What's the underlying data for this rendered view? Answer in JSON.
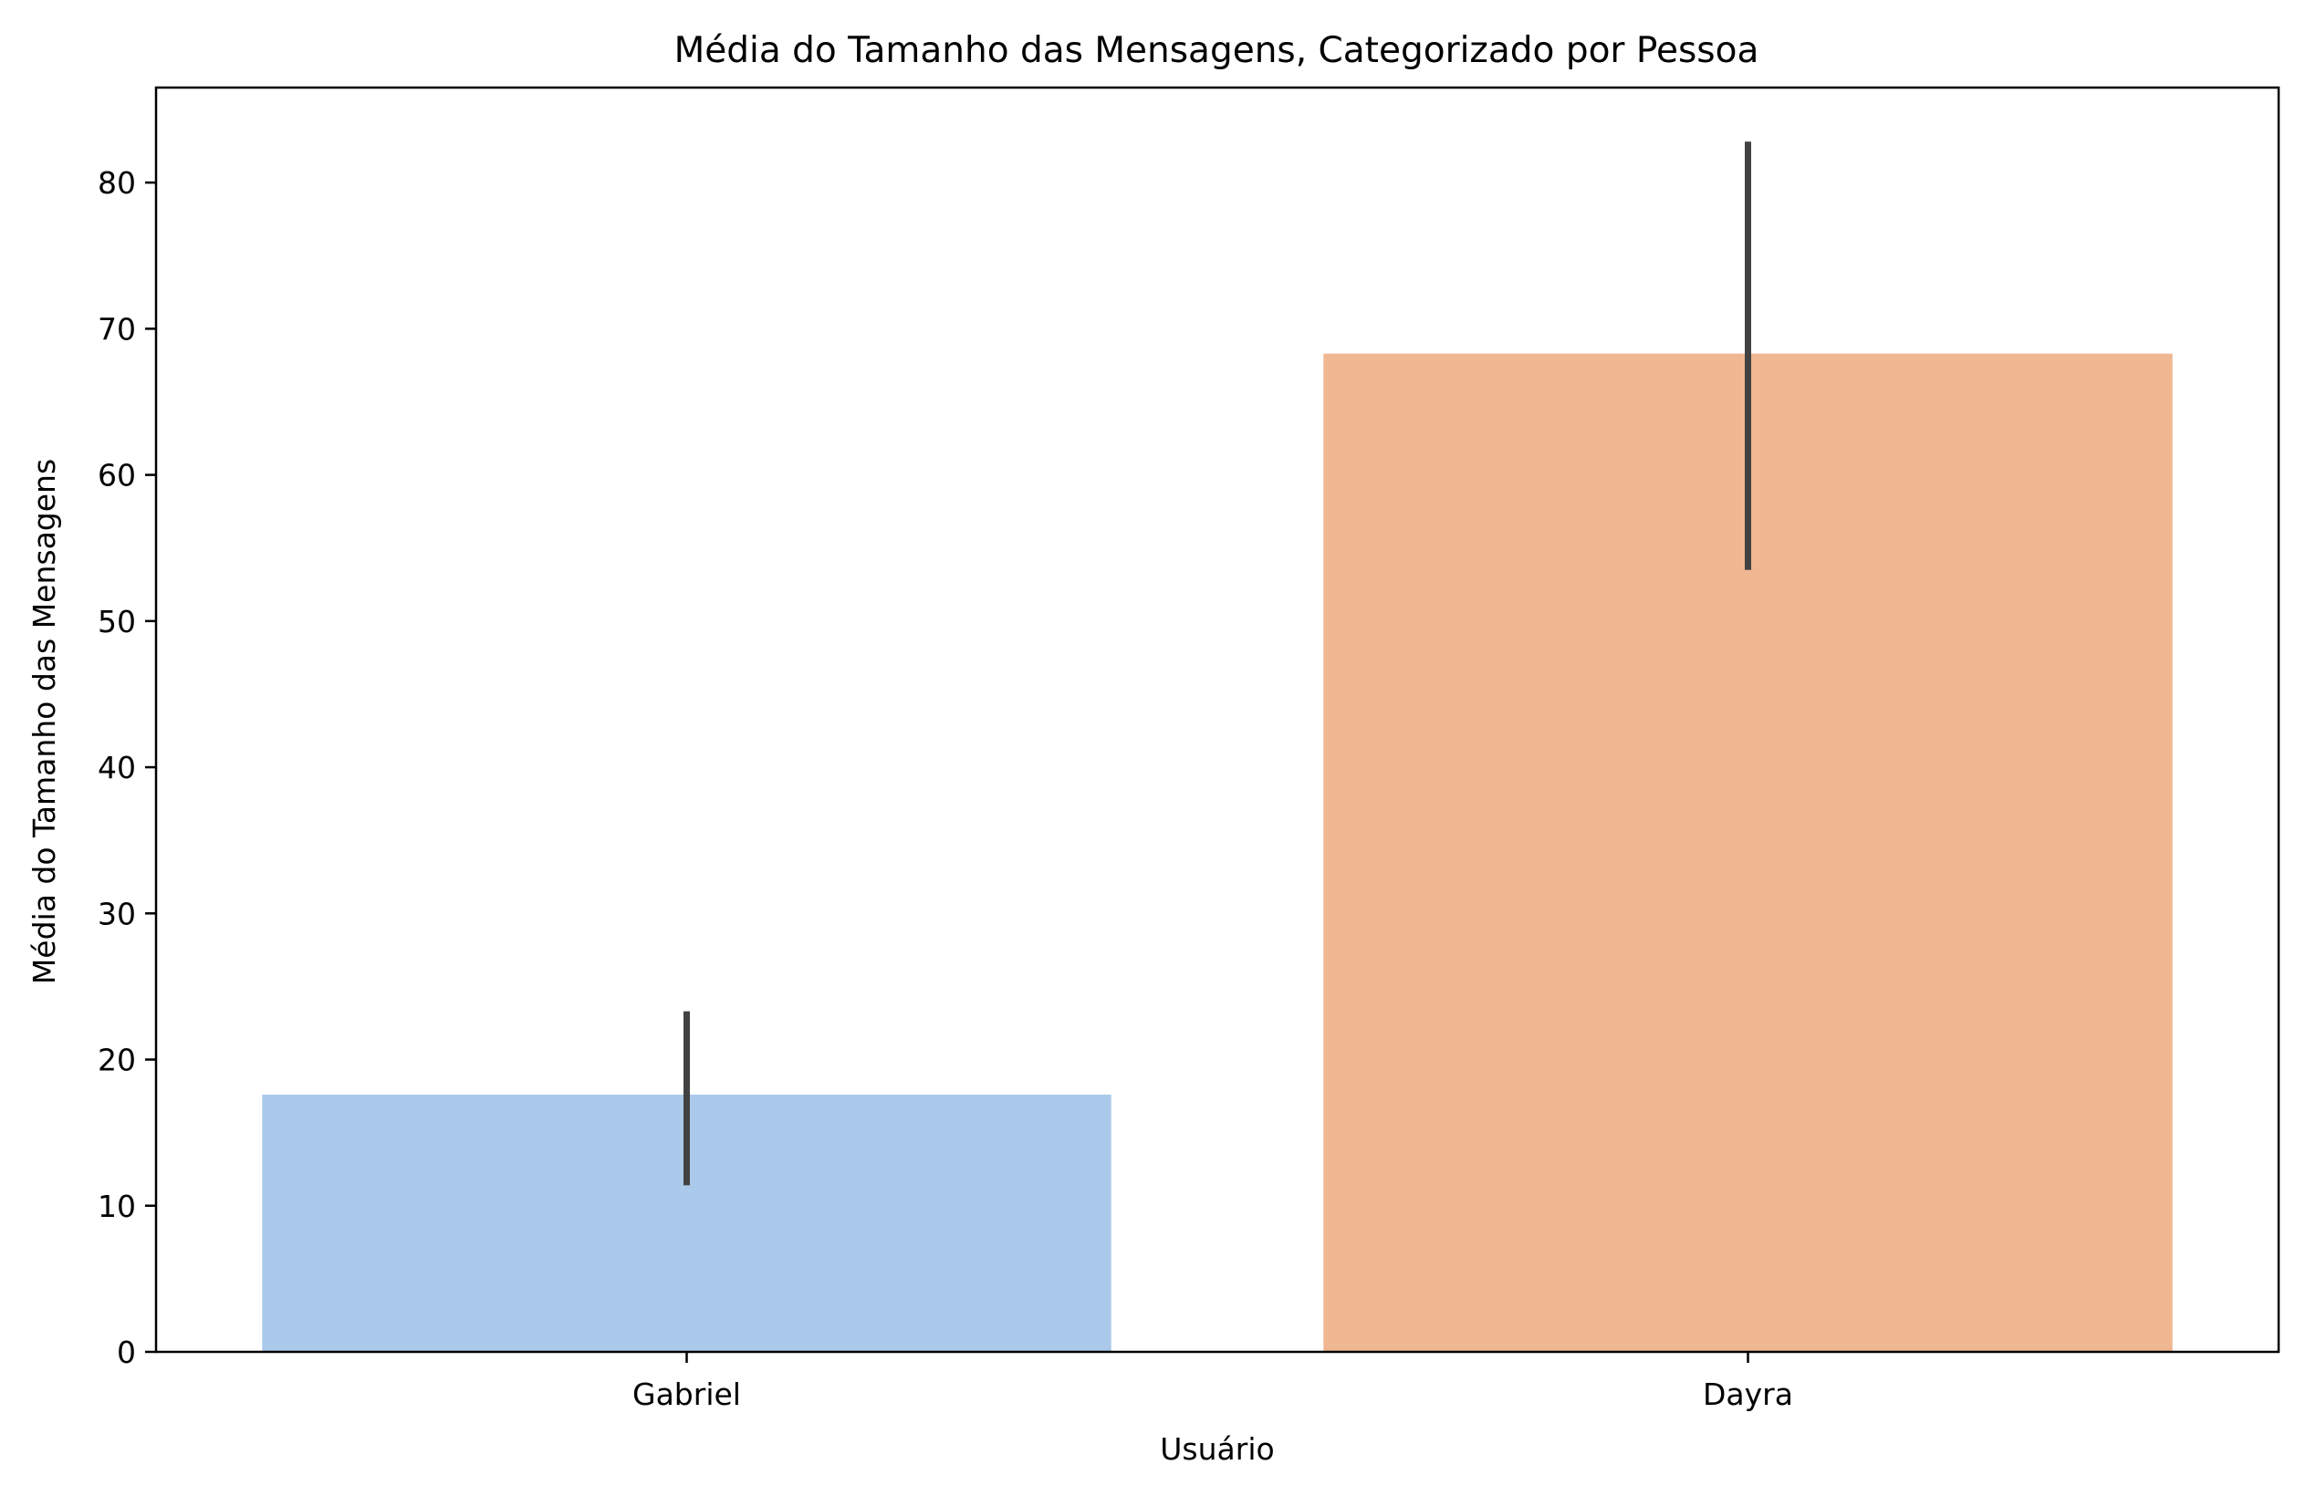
{
  "chart_data": {
    "type": "bar",
    "title": "Média do Tamanho das Mensagens, Categorizado por Pessoa",
    "xlabel": "Usuário",
    "ylabel": "Média do Tamanho das Mensagens",
    "categories": [
      "Gabriel",
      "Dayra"
    ],
    "values": [
      17.6,
      68.3
    ],
    "error_bars": [
      {
        "low": 11.4,
        "high": 23.3
      },
      {
        "low": 53.5,
        "high": 82.8
      }
    ],
    "colors": [
      "#abc9ea",
      "#efb792"
    ],
    "error_bar_color": "#424242",
    "ylim": [
      0,
      86.5
    ],
    "yticks": [
      0,
      10,
      20,
      30,
      40,
      50,
      60,
      70,
      80
    ],
    "grid": false,
    "legend": "none"
  }
}
